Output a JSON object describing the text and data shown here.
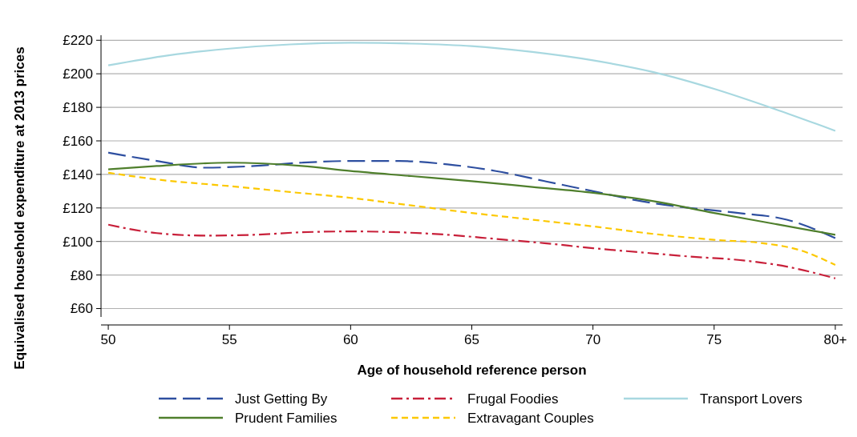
{
  "chart_data": {
    "type": "line",
    "xlabel": "Age of household reference person",
    "ylabel": "Equivalised household expenditure at 2013 prices",
    "xlim": [
      49.7,
      80.3
    ],
    "ylim": [
      55,
      223
    ],
    "xticks": [
      50,
      55,
      60,
      65,
      70,
      75,
      {
        "value": 80,
        "label": "80+"
      }
    ],
    "yticks": [
      {
        "value": 60,
        "label": "£60"
      },
      {
        "value": 80,
        "label": "£80"
      },
      {
        "value": 100,
        "label": "£100"
      },
      {
        "value": 120,
        "label": "£120"
      },
      {
        "value": 140,
        "label": "£140"
      },
      {
        "value": 160,
        "label": "£160"
      },
      {
        "value": 180,
        "label": "£180"
      },
      {
        "value": 200,
        "label": "£200"
      },
      {
        "value": 220,
        "label": "£220"
      }
    ],
    "grid": "y",
    "legend": "bottom",
    "series": [
      {
        "name": "Just Getting By",
        "color": "#2e4fa0",
        "line_style": "dashed",
        "x": [
          50,
          52,
          54,
          56,
          58,
          60,
          62,
          64,
          66,
          68,
          70,
          72,
          74,
          76,
          78,
          80
        ],
        "values": [
          153,
          148,
          144,
          145,
          147,
          148,
          148,
          146,
          142,
          136,
          130,
          124,
          120,
          117,
          113,
          102
        ]
      },
      {
        "name": "Frugal Foodies",
        "color": "#c8203a",
        "line_style": "dashdot",
        "x": [
          50,
          52,
          54,
          56,
          58,
          60,
          62,
          64,
          66,
          68,
          70,
          72,
          74,
          76,
          78,
          80
        ],
        "values": [
          110,
          105,
          103.5,
          104,
          105.5,
          106,
          105.5,
          104,
          101.5,
          99,
          96,
          93.5,
          91,
          89,
          85,
          78
        ]
      },
      {
        "name": "Transport Lovers",
        "color": "#a8d8e0",
        "line_style": "solid",
        "x": [
          50,
          52.5,
          55,
          57.5,
          60,
          62.5,
          65,
          67.5,
          70,
          72.5,
          75,
          77.5,
          80
        ],
        "values": [
          205,
          211,
          215,
          217.5,
          218.5,
          218,
          216.5,
          213,
          208,
          201,
          191,
          179,
          166
        ]
      },
      {
        "name": "Prudent Families",
        "color": "#4f7f2c",
        "line_style": "solid",
        "x": [
          50,
          52,
          55,
          58,
          60,
          62.5,
          65,
          67.5,
          70,
          72.5,
          75,
          77.5,
          80
        ],
        "values": [
          143,
          145,
          147,
          145,
          142,
          139,
          136,
          132.5,
          129,
          124,
          117,
          110.5,
          104
        ]
      },
      {
        "name": "Extravagant Couples",
        "color": "#fcc800",
        "line_style": "dashed",
        "x": [
          50,
          52,
          55,
          57.5,
          60,
          62.5,
          65,
          67.5,
          70,
          72.5,
          75,
          77,
          78.5,
          80
        ],
        "values": [
          141,
          137,
          133,
          129.5,
          126,
          121.5,
          117,
          113,
          109,
          104.5,
          101,
          99,
          95,
          86
        ]
      }
    ]
  }
}
